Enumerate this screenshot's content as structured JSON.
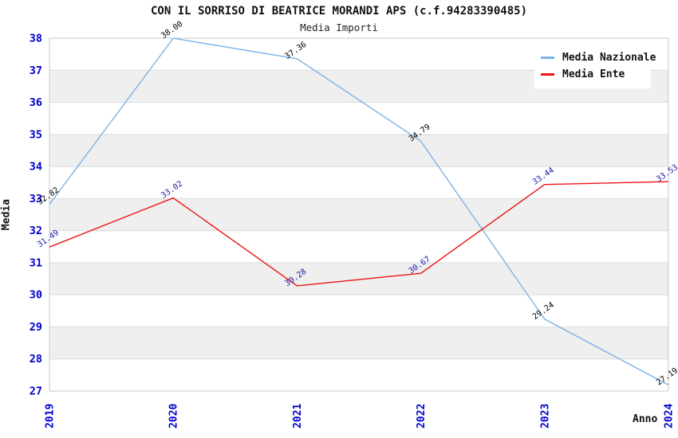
{
  "chart": {
    "title": "CON IL SORRISO DI BEATRICE MORANDI APS (c.f.94283390485)",
    "subtitle": "Media Importi",
    "xlabel": "Anno",
    "ylabel": "Media"
  },
  "chart_data": {
    "type": "line",
    "title": "CON IL SORRISO DI BEATRICE MORANDI APS (c.f.94283390485)",
    "subtitle": "Media Importi",
    "xlabel": "Anno",
    "ylabel": "Media",
    "categories": [
      "2019",
      "2020",
      "2021",
      "2022",
      "2023",
      "2024"
    ],
    "series": [
      {
        "name": "Media Nazionale",
        "values": [
          32.82,
          38.0,
          37.36,
          34.79,
          29.24,
          27.19
        ],
        "point_labels": [
          "32.82",
          "38.00",
          "37.36",
          "34.79",
          "29.24",
          "27.19"
        ],
        "color": "#7eb3e6",
        "label_color": "#000000"
      },
      {
        "name": "Media Ente",
        "values": [
          31.49,
          33.02,
          30.28,
          30.67,
          33.44,
          33.53
        ],
        "point_labels": [
          "31.49",
          "33.02",
          "30.28",
          "30.67",
          "33.44",
          "33.53"
        ],
        "color": "#ef1212",
        "label_color": "#1a1aae"
      }
    ],
    "ylim": [
      27,
      38
    ],
    "y_ticks": [
      27,
      28,
      29,
      30,
      31,
      32,
      33,
      34,
      35,
      36,
      37,
      38
    ],
    "grid": true,
    "legend_position": "top-right",
    "tick_color": "#0000cc",
    "band_color": "#efefef",
    "gridline_color": "#dcdcdc",
    "frame_color": "#c8c8c8"
  }
}
